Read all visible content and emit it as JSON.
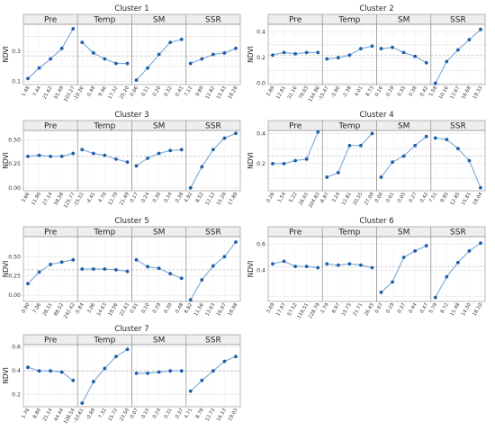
{
  "chart_data": {
    "type": "line",
    "ylabel": "NDVI",
    "facets": [
      "Pre",
      "Temp",
      "SM",
      "SSR"
    ],
    "reference_line": "dashed",
    "clusters": [
      {
        "title": "Cluster 1",
        "ylim": [
          0.08,
          0.48
        ],
        "yticks": [
          0.1,
          0.2,
          0.3,
          0.4
        ],
        "ytick_labels": [
          "0.1",
          "",
          "0.3",
          ""
        ],
        "ref": 0.27,
        "panels": [
          {
            "x": [
              "1.48",
              "7.44",
              "21.62",
              "55.49",
              "103.27"
            ],
            "y": [
              0.12,
              0.19,
              0.25,
              0.32,
              0.45
            ]
          },
          {
            "x": [
              "-10.36",
              "0.48",
              "9.46",
              "17.32",
              "25.20"
            ],
            "y": [
              0.36,
              0.29,
              0.25,
              0.22,
              0.22
            ]
          },
          {
            "x": [
              "0.06",
              "0.11",
              "0.20",
              "0.32",
              "0.41"
            ],
            "y": [
              0.11,
              0.19,
              0.28,
              0.36,
              0.38
            ]
          },
          {
            "x": [
              "7.12",
              "9.89",
              "12.82",
              "15.43",
              "18.28"
            ],
            "y": [
              0.22,
              0.25,
              0.28,
              0.29,
              0.32
            ]
          }
        ]
      },
      {
        "title": "Cluster 2",
        "ylim": [
          -0.01,
          0.46
        ],
        "yticks": [
          0.0,
          0.1,
          0.2,
          0.3,
          0.4
        ],
        "ytick_labels": [
          "0.0",
          "",
          "0.2",
          "",
          "0.4"
        ],
        "ref": 0.22,
        "panels": [
          {
            "x": [
              "3.89",
              "12.91",
              "31.16",
              "79.03",
              "154.96"
            ],
            "y": [
              0.22,
              0.24,
              0.23,
              0.24,
              0.24
            ]
          },
          {
            "x": [
              "-15.47",
              "-5.90",
              "-2.38",
              "4.01",
              "8.73"
            ],
            "y": [
              0.19,
              0.2,
              0.22,
              0.27,
              0.29
            ]
          },
          {
            "x": [
              "0.16",
              "0.29",
              "0.35",
              "0.38",
              "0.42"
            ],
            "y": [
              0.27,
              0.28,
              0.24,
              0.21,
              0.16
            ]
          },
          {
            "x": [
              "5.58",
              "10.16",
              "13.67",
              "16.68",
              "19.33"
            ],
            "y": [
              0.0,
              0.17,
              0.26,
              0.34,
              0.42
            ]
          }
        ]
      },
      {
        "title": "Cluster 3",
        "ylim": [
          -0.03,
          0.6
        ],
        "yticks": [
          0.0,
          0.25,
          0.5
        ],
        "ytick_labels": [
          "0.00",
          "0.25",
          "0.50"
        ],
        "ref": 0.33,
        "panels": [
          {
            "x": [
              "3.66",
              "11.90",
              "27.14",
              "58.58",
              "125.77"
            ],
            "y": [
              0.33,
              0.34,
              0.33,
              0.33,
              0.36
            ]
          },
          {
            "x": [
              "-15.51",
              "-4.41",
              "4.70",
              "12.79",
              "21.49"
            ],
            "y": [
              0.4,
              0.36,
              0.34,
              0.3,
              0.27
            ]
          },
          {
            "x": [
              "0.17",
              "0.24",
              "0.30",
              "0.34",
              "0.38"
            ],
            "y": [
              0.23,
              0.31,
              0.36,
              0.39,
              0.4
            ]
          },
          {
            "x": [
              "4.92",
              "8.52",
              "12.12",
              "15.20",
              "17.89"
            ],
            "y": [
              0.0,
              0.22,
              0.4,
              0.52,
              0.57
            ]
          }
        ]
      },
      {
        "title": "Cluster 4",
        "ylim": [
          0.02,
          0.42
        ],
        "yticks": [
          0.0,
          0.1,
          0.2,
          0.3,
          0.4
        ],
        "ytick_labels": [
          "",
          "",
          "0.2",
          "",
          "0.4"
        ],
        "ref": 0.25,
        "panels": [
          {
            "x": [
              "0.26",
              "1.54",
              "5.22",
              "26.01",
              "204.83"
            ],
            "y": [
              0.2,
              0.2,
              0.22,
              0.23,
              0.41
            ]
          },
          {
            "x": [
              "-6.87",
              "3.24",
              "12.81",
              "20.55",
              "27.09"
            ],
            "y": [
              0.11,
              0.14,
              0.32,
              0.32,
              0.4
            ]
          },
          {
            "x": [
              "0.00",
              "0.01",
              "0.05",
              "0.27",
              "0.42"
            ],
            "y": [
              0.11,
              0.21,
              0.25,
              0.32,
              0.38
            ]
          },
          {
            "x": [
              "7.51",
              "9.95",
              "12.85",
              "15.81",
              "19.04"
            ],
            "y": [
              0.37,
              0.36,
              0.3,
              0.22,
              0.04
            ]
          }
        ]
      },
      {
        "title": "Cluster 5",
        "ylim": [
          -0.08,
          0.76
        ],
        "yticks": [
          0.0,
          0.25,
          0.5
        ],
        "ytick_labels": [
          "0.00",
          "0.25",
          "0.50"
        ],
        "ref": 0.33,
        "panels": [
          {
            "x": [
              "0.90",
              "7.06",
              "28.31",
              "88.52",
              "242.42"
            ],
            "y": [
              0.15,
              0.3,
              0.4,
              0.43,
              0.46
            ]
          },
          {
            "x": [
              "-5.84",
              "3.06",
              "14.63",
              "18.56",
              "22.43"
            ],
            "y": [
              0.34,
              0.34,
              0.34,
              0.33,
              0.31
            ]
          },
          {
            "x": [
              "0.01",
              "0.10",
              "0.29",
              "0.39",
              "0.48"
            ],
            "y": [
              0.46,
              0.37,
              0.35,
              0.28,
              0.22
            ]
          },
          {
            "x": [
              "6.82",
              "11.56",
              "13.63",
              "16.07",
              "18.98"
            ],
            "y": [
              -0.06,
              0.2,
              0.38,
              0.5,
              0.69
            ]
          }
        ]
      },
      {
        "title": "Cluster 6",
        "ylim": [
          0.16,
          0.66
        ],
        "yticks": [
          0.2,
          0.4,
          0.6
        ],
        "ytick_labels": [
          "",
          "0.4",
          "0.6"
        ],
        "ref": 0.43,
        "panels": [
          {
            "x": [
              "3.69",
              "17.97",
              "57.52",
              "118.51",
              "228.79"
            ],
            "y": [
              0.45,
              0.47,
              0.43,
              0.43,
              0.42
            ]
          },
          {
            "x": [
              "-1.79",
              "8.97",
              "15.75",
              "21.71",
              "26.45"
            ],
            "y": [
              0.45,
              0.44,
              0.45,
              0.44,
              0.42
            ]
          },
          {
            "x": [
              "0.07",
              "0.19",
              "0.37",
              "0.44",
              "0.47"
            ],
            "y": [
              0.23,
              0.31,
              0.5,
              0.55,
              0.59
            ]
          },
          {
            "x": [
              "5.79",
              "8.72",
              "11.48",
              "14.30",
              "18.10"
            ],
            "y": [
              0.19,
              0.35,
              0.46,
              0.55,
              0.61
            ]
          }
        ]
      },
      {
        "title": "Cluster 7",
        "ylim": [
          0.1,
          0.62
        ],
        "yticks": [
          0.2,
          0.4,
          0.6
        ],
        "ytick_labels": [
          "0.2",
          "0.4",
          "0.6"
        ],
        "ref": 0.4,
        "panels": [
          {
            "x": [
              "1.76",
              "8.80",
              "21.14",
              "44.44",
              "108.54"
            ],
            "y": [
              0.43,
              0.4,
              0.4,
              0.39,
              0.32
            ]
          },
          {
            "x": [
              "-10.61",
              "-0.89",
              "7.32",
              "15.72",
              "23.50"
            ],
            "y": [
              0.13,
              0.31,
              0.42,
              0.52,
              0.58
            ]
          },
          {
            "x": [
              "0.07",
              "0.15",
              "0.24",
              "0.31",
              "0.37"
            ],
            "y": [
              0.38,
              0.38,
              0.39,
              0.4,
              0.4
            ]
          },
          {
            "x": [
              "4.71",
              "8.78",
              "12.73",
              "16.13",
              "19.03"
            ],
            "y": [
              0.23,
              0.32,
              0.4,
              0.48,
              0.52
            ]
          }
        ]
      }
    ]
  }
}
